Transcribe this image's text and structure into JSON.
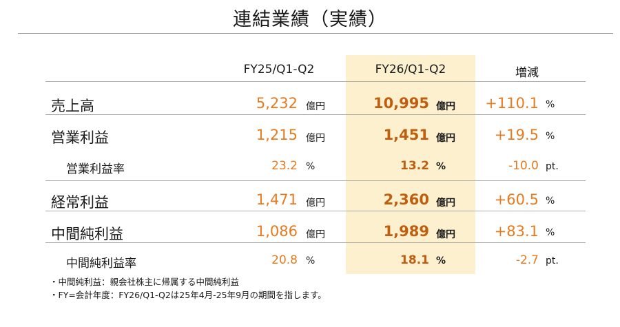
{
  "title": "連結業績（実績）",
  "columns": {
    "fy25": "FY25/Q1-Q2",
    "fy26": "FY26/Q1-Q2",
    "change": "増減"
  },
  "rows": [
    {
      "label": "売上高",
      "fy25_value": "5,232",
      "fy25_unit": "億円",
      "fy26_value": "10,995",
      "fy26_unit": "億円",
      "change_value": "+110.1",
      "change_unit": "%"
    },
    {
      "label": "営業利益",
      "fy25_value": "1,215",
      "fy25_unit": "億円",
      "fy26_value": "1,451",
      "fy26_unit": "億円",
      "change_value": "+19.5",
      "change_unit": "%"
    },
    {
      "label": "営業利益率",
      "fy25_value": "23.2",
      "fy25_unit": "%",
      "fy26_value": "13.2",
      "fy26_unit": "%",
      "change_value": "-10.0",
      "change_unit": "pt."
    },
    {
      "label": "経常利益",
      "fy25_value": "1,471",
      "fy25_unit": "億円",
      "fy26_value": "2,360",
      "fy26_unit": "億円",
      "change_value": "+60.5",
      "change_unit": "%"
    },
    {
      "label": "中間純利益",
      "fy25_value": "1,086",
      "fy25_unit": "億円",
      "fy26_value": "1,989",
      "fy26_unit": "億円",
      "change_value": "+83.1",
      "change_unit": "%"
    },
    {
      "label": "中間純利益率",
      "fy25_value": "20.8",
      "fy25_unit": "%",
      "fy26_value": "18.1",
      "fy26_unit": "%",
      "change_value": "-2.7",
      "change_unit": "pt."
    }
  ],
  "notes": [
    "・中間純利益：親会社株主に帰属する中間純利益",
    "・FY=会計年度：FY26/Q1-Q2は25年4月-25年9月の期間を指します。"
  ],
  "colors": {
    "value_orange": "#e87a1e",
    "value_bold": "#c05e0f",
    "highlight": "#fdf0cf"
  }
}
